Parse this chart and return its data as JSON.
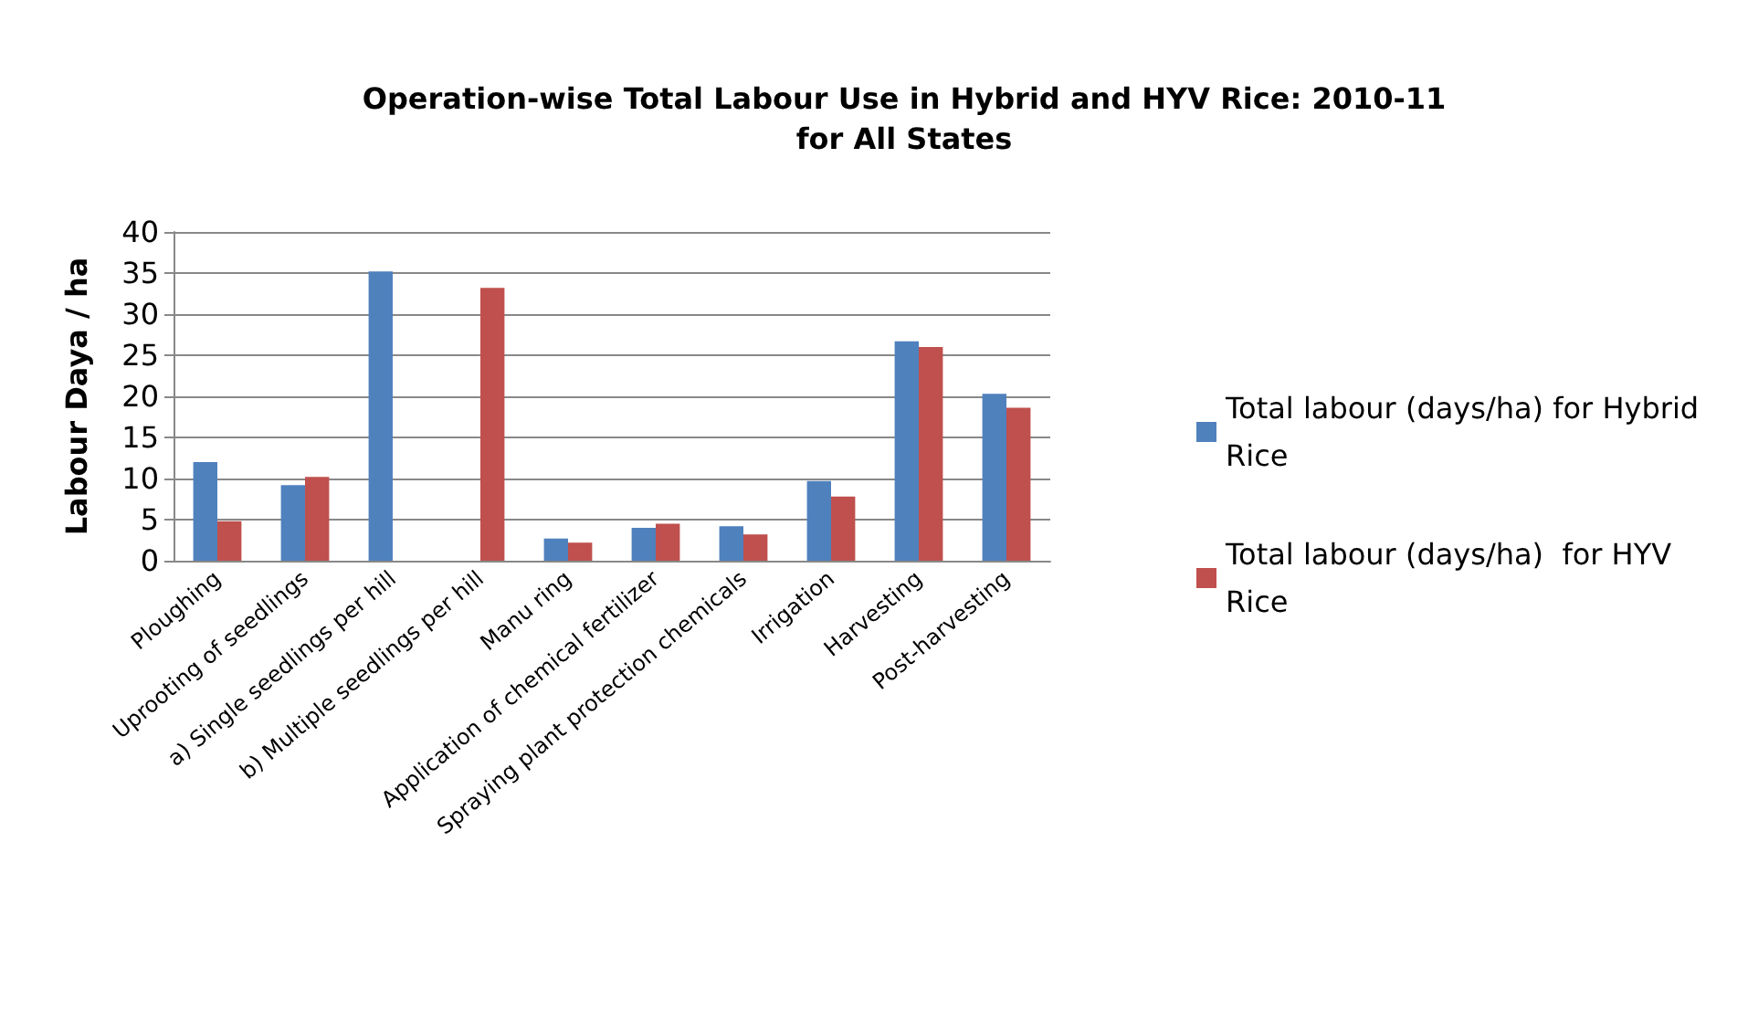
{
  "chart_data": {
    "type": "bar",
    "title": "Operation-wise Total Labour Use in Hybrid and HYV Rice: 2010-11\nfor All States",
    "ylabel": "Labour Daya / ha",
    "categories": [
      "Ploughing",
      "Uprooting of seedlings",
      "a) Single seedlings per hill",
      "b) Multiple seedlings per hill",
      "Manu ring",
      "Application of chemical fertilizer",
      "Spraying plant protection chemicals",
      "Irrigation",
      "Harvesting",
      "Post-harvesting"
    ],
    "series": [
      {
        "name": "Total labour (days/ha) for Hybrid Rice",
        "color": "#4f81bd",
        "values": [
          12,
          9.2,
          35.2,
          0,
          2.7,
          4,
          4.2,
          9.7,
          26.7,
          20.3
        ]
      },
      {
        "name": "Total labour (days/ha)  for HYV Rice",
        "color": "#c0504d",
        "values": [
          4.8,
          10.2,
          0,
          33.2,
          2.2,
          4.5,
          3.2,
          7.8,
          26,
          18.6
        ]
      }
    ],
    "ylim": [
      0,
      40
    ],
    "yticks": [
      0,
      5,
      10,
      15,
      20,
      25,
      30,
      35,
      40
    ],
    "grid": "y",
    "legend": "right"
  }
}
